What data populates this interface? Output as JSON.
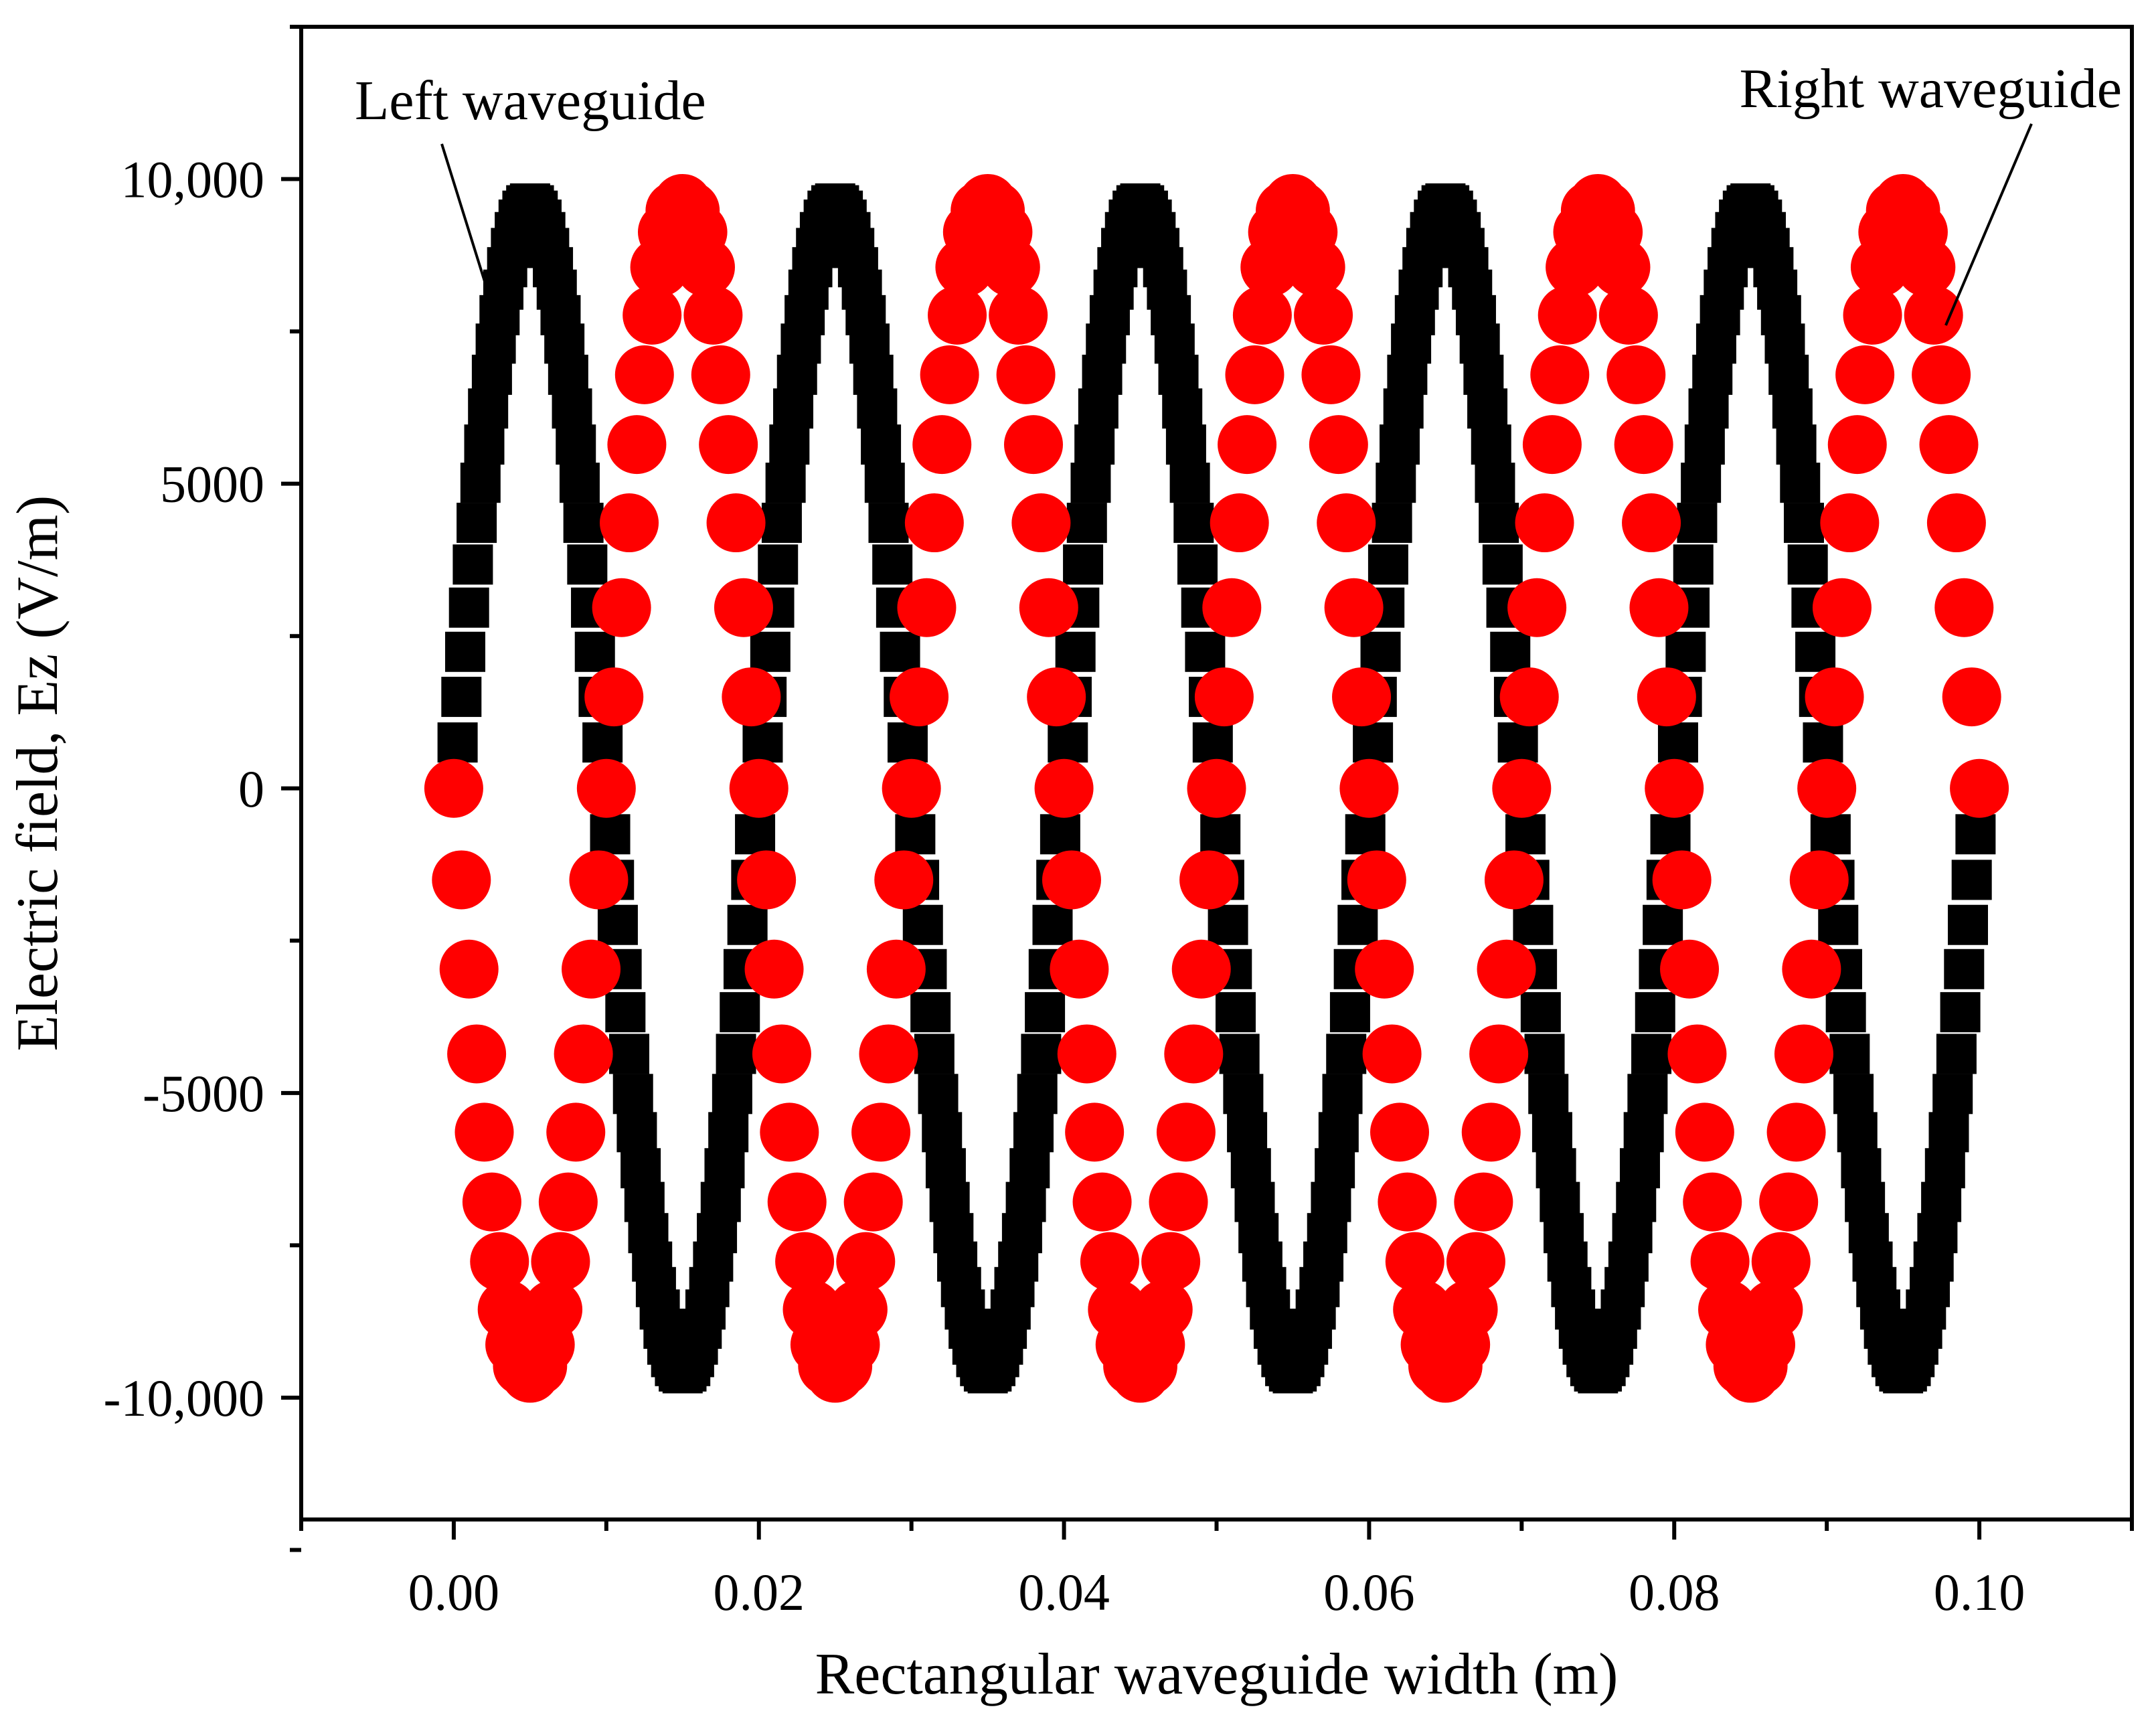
{
  "chart_data": {
    "type": "scatter",
    "xlabel": "Rectangular waveguide width (m)",
    "ylabel": "Electric field, Ez (V/m)",
    "xlim": [
      -0.01,
      0.11
    ],
    "ylim": [
      -12000,
      12500
    ],
    "xticks": [
      0.0,
      0.02,
      0.04,
      0.06,
      0.08,
      0.1
    ],
    "xtick_labels": [
      "0.00",
      "0.02",
      "0.04",
      "0.06",
      "0.08",
      "0.10"
    ],
    "xminor": [
      -0.01,
      0.01,
      0.03,
      0.05,
      0.07,
      0.09,
      0.11
    ],
    "yticks": [
      10000,
      5000,
      0,
      -5000,
      -10000
    ],
    "ytick_labels": [
      "10,000",
      "5000",
      "0",
      "-5000",
      "-10,000"
    ],
    "yminor": [
      12500,
      7500,
      2500,
      -2500,
      -7500,
      -12500
    ],
    "grid": false,
    "series": [
      {
        "name": "Left waveguide",
        "color": "#000000",
        "marker": "square",
        "amplitude": 9600,
        "period": 0.02,
        "phase": 0,
        "x_start": 0.0,
        "x_end": 0.1,
        "n_points": 400
      },
      {
        "name": "Right waveguide",
        "color": "#ff0000",
        "marker": "circle",
        "amplitude": 9600,
        "period": 0.02,
        "phase": 3.14159265,
        "x_start": 0.0,
        "x_end": 0.1,
        "n_points": 200
      }
    ],
    "annotations": [
      {
        "text": "Left waveguide",
        "points_to": {
          "x": 0.0023,
          "y": 8100
        }
      },
      {
        "text": "Right waveguide",
        "points_to": {
          "x": 0.0978,
          "y": 7600
        }
      }
    ]
  }
}
